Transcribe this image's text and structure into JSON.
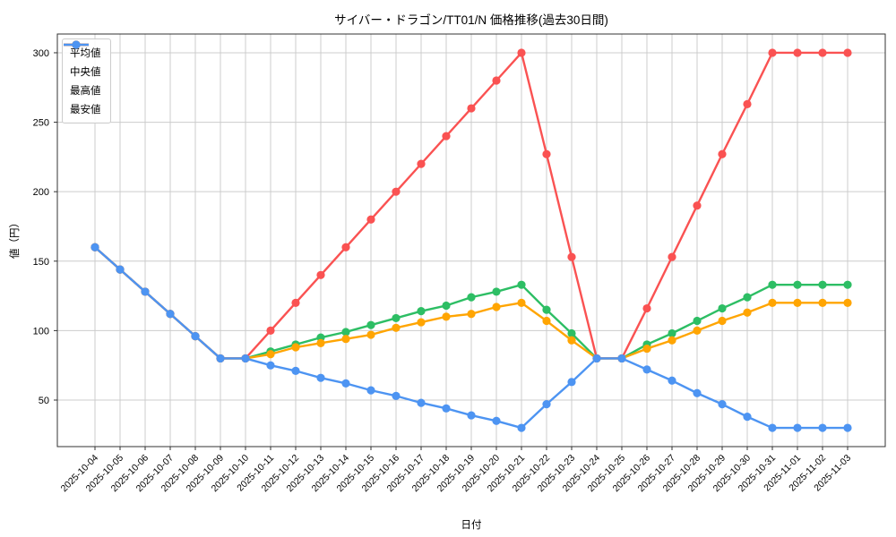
{
  "chart_data": {
    "type": "line",
    "title": "サイバー・ドラゴン/TT01/N 価格推移(過去30日間)",
    "xlabel": "日付",
    "ylabel": "値（円）",
    "grid": true,
    "legend_position": "upper-left",
    "yticks": [
      50,
      100,
      150,
      200,
      250,
      300
    ],
    "ylim": [
      16.5,
      313.5
    ],
    "x": [
      "2025-10-04",
      "2025-10-05",
      "2025-10-06",
      "2025-10-07",
      "2025-10-08",
      "2025-10-09",
      "2025-10-10",
      "2025-10-11",
      "2025-10-12",
      "2025-10-13",
      "2025-10-14",
      "2025-10-15",
      "2025-10-16",
      "2025-10-17",
      "2025-10-18",
      "2025-10-19",
      "2025-10-20",
      "2025-10-21",
      "2025-10-22",
      "2025-10-23",
      "2025-10-24",
      "2025-10-25",
      "2025-10-26",
      "2025-10-27",
      "2025-10-28",
      "2025-10-29",
      "2025-10-30",
      "2025-10-31",
      "2025-11-01",
      "2025-11-02",
      "2025-11-03"
    ],
    "series": [
      {
        "key": "average",
        "name": "平均値",
        "color": "#2dbe64",
        "values": [
          160,
          144,
          128,
          112,
          96,
          80,
          80,
          85,
          90,
          95,
          99,
          104,
          109,
          114,
          118,
          124,
          128,
          133,
          115,
          98,
          80,
          80,
          90,
          98,
          107,
          116,
          124,
          133,
          133,
          133,
          133
        ]
      },
      {
        "key": "median",
        "name": "中央値",
        "color": "#ffa502",
        "values": [
          160,
          144,
          128,
          112,
          96,
          80,
          80,
          83,
          88,
          91,
          94,
          97,
          102,
          106,
          110,
          112,
          117,
          120,
          107,
          93,
          80,
          80,
          87,
          93,
          100,
          107,
          113,
          120,
          120,
          120,
          120
        ]
      },
      {
        "key": "max",
        "name": "最高値",
        "color": "#fa5252",
        "values": [
          160,
          144,
          128,
          112,
          96,
          80,
          80,
          100,
          120,
          140,
          160,
          180,
          200,
          220,
          240,
          260,
          280,
          300,
          227,
          153,
          80,
          80,
          116,
          153,
          190,
          227,
          263,
          300,
          300,
          300,
          300
        ]
      },
      {
        "key": "min",
        "name": "最安値",
        "color": "#4d94f2",
        "values": [
          160,
          144,
          128,
          112,
          96,
          80,
          80,
          75,
          71,
          66,
          62,
          57,
          53,
          48,
          44,
          39,
          35,
          30,
          47,
          63,
          80,
          80,
          72,
          64,
          55,
          47,
          38,
          30,
          30,
          30,
          30
        ]
      }
    ]
  }
}
